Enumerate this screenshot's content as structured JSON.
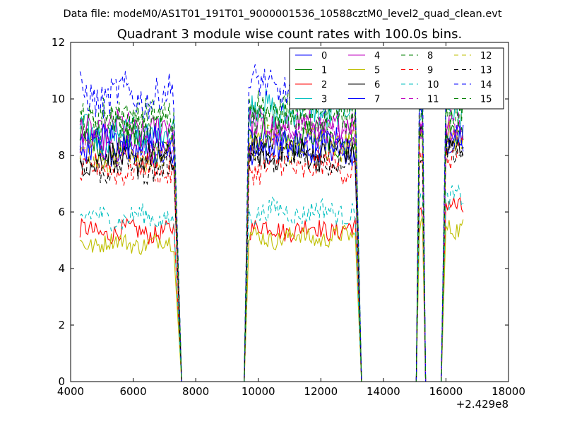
{
  "chart_data": {
    "type": "line",
    "suptitle": "Data file: modeM0/AS1T01_191T01_9000001536_10588cztM0_level2_quad_clean.evt",
    "title": "Quadrant 3 module wise count rates with 100.0s bins.",
    "xlabel": "",
    "ylabel": "",
    "x_offset_label": "+2.429e8",
    "xlim": [
      4000,
      18000
    ],
    "ylim": [
      0,
      12
    ],
    "xticks": [
      4000,
      6000,
      8000,
      10000,
      12000,
      14000,
      16000,
      18000
    ],
    "yticks": [
      0,
      2,
      4,
      6,
      8,
      10,
      12
    ],
    "xtick_labels": [
      "4000",
      "6000",
      "8000",
      "10000",
      "12000",
      "14000",
      "16000",
      "18000"
    ],
    "ytick_labels": [
      "0",
      "2",
      "4",
      "6",
      "8",
      "10",
      "12"
    ],
    "legend_position": "top-right",
    "segments": [
      {
        "start": 4300,
        "end": 7300,
        "drop_to": 7550
      },
      {
        "start": 9700,
        "end": 13100,
        "rise_from": 9550,
        "drop_to": 13300
      },
      {
        "start": 15150,
        "end": 15250,
        "rise_from": 15050,
        "drop_to": 15350
      },
      {
        "start": 16000,
        "end": 16550,
        "rise_from": 15850
      }
    ],
    "series": [
      {
        "name": "0",
        "color": "#0000ff",
        "dash": "solid",
        "base": [
          8.2,
          8.4,
          8.6,
          8.5
        ]
      },
      {
        "name": "1",
        "color": "#008000",
        "dash": "solid",
        "base": [
          8.4,
          8.6,
          8.8,
          8.7
        ]
      },
      {
        "name": "2",
        "color": "#ff0000",
        "dash": "solid",
        "base": [
          5.3,
          5.4,
          6.0,
          6.2
        ]
      },
      {
        "name": "3",
        "color": "#00bfbf",
        "dash": "solid",
        "base": [
          8.8,
          9.6,
          9.8,
          9.6
        ]
      },
      {
        "name": "4",
        "color": "#bf00bf",
        "dash": "solid",
        "base": [
          8.9,
          9.0,
          9.2,
          9.1
        ]
      },
      {
        "name": "5",
        "color": "#bfbf00",
        "dash": "solid",
        "base": [
          4.9,
          5.1,
          5.6,
          5.5
        ]
      },
      {
        "name": "6",
        "color": "#000000",
        "dash": "solid",
        "base": [
          7.9,
          8.1,
          8.6,
          8.4
        ]
      },
      {
        "name": "7",
        "color": "#0000ff",
        "dash": "solid",
        "base": [
          8.5,
          8.3,
          8.9,
          8.8
        ]
      },
      {
        "name": "8",
        "color": "#008000",
        "dash": "dashed",
        "base": [
          9.3,
          9.5,
          9.7,
          9.5
        ]
      },
      {
        "name": "9",
        "color": "#ff0000",
        "dash": "dashed",
        "base": [
          7.5,
          7.6,
          8.0,
          7.9
        ]
      },
      {
        "name": "10",
        "color": "#00bfbf",
        "dash": "dashed",
        "base": [
          5.8,
          6.0,
          6.5,
          6.4
        ]
      },
      {
        "name": "11",
        "color": "#bf00bf",
        "dash": "dashed",
        "base": [
          8.3,
          8.8,
          9.1,
          8.9
        ]
      },
      {
        "name": "12",
        "color": "#bfbf00",
        "dash": "dashed",
        "base": [
          8.0,
          8.4,
          8.7,
          8.6
        ]
      },
      {
        "name": "13",
        "color": "#000000",
        "dash": "dashed",
        "base": [
          7.6,
          7.9,
          8.3,
          8.2
        ]
      },
      {
        "name": "14",
        "color": "#0000ff",
        "dash": "dashed",
        "base": [
          10.1,
          10.4,
          10.8,
          10.7
        ]
      },
      {
        "name": "15",
        "color": "#008000",
        "dash": "dashed",
        "base": [
          9.2,
          9.6,
          9.9,
          9.8
        ]
      }
    ]
  }
}
